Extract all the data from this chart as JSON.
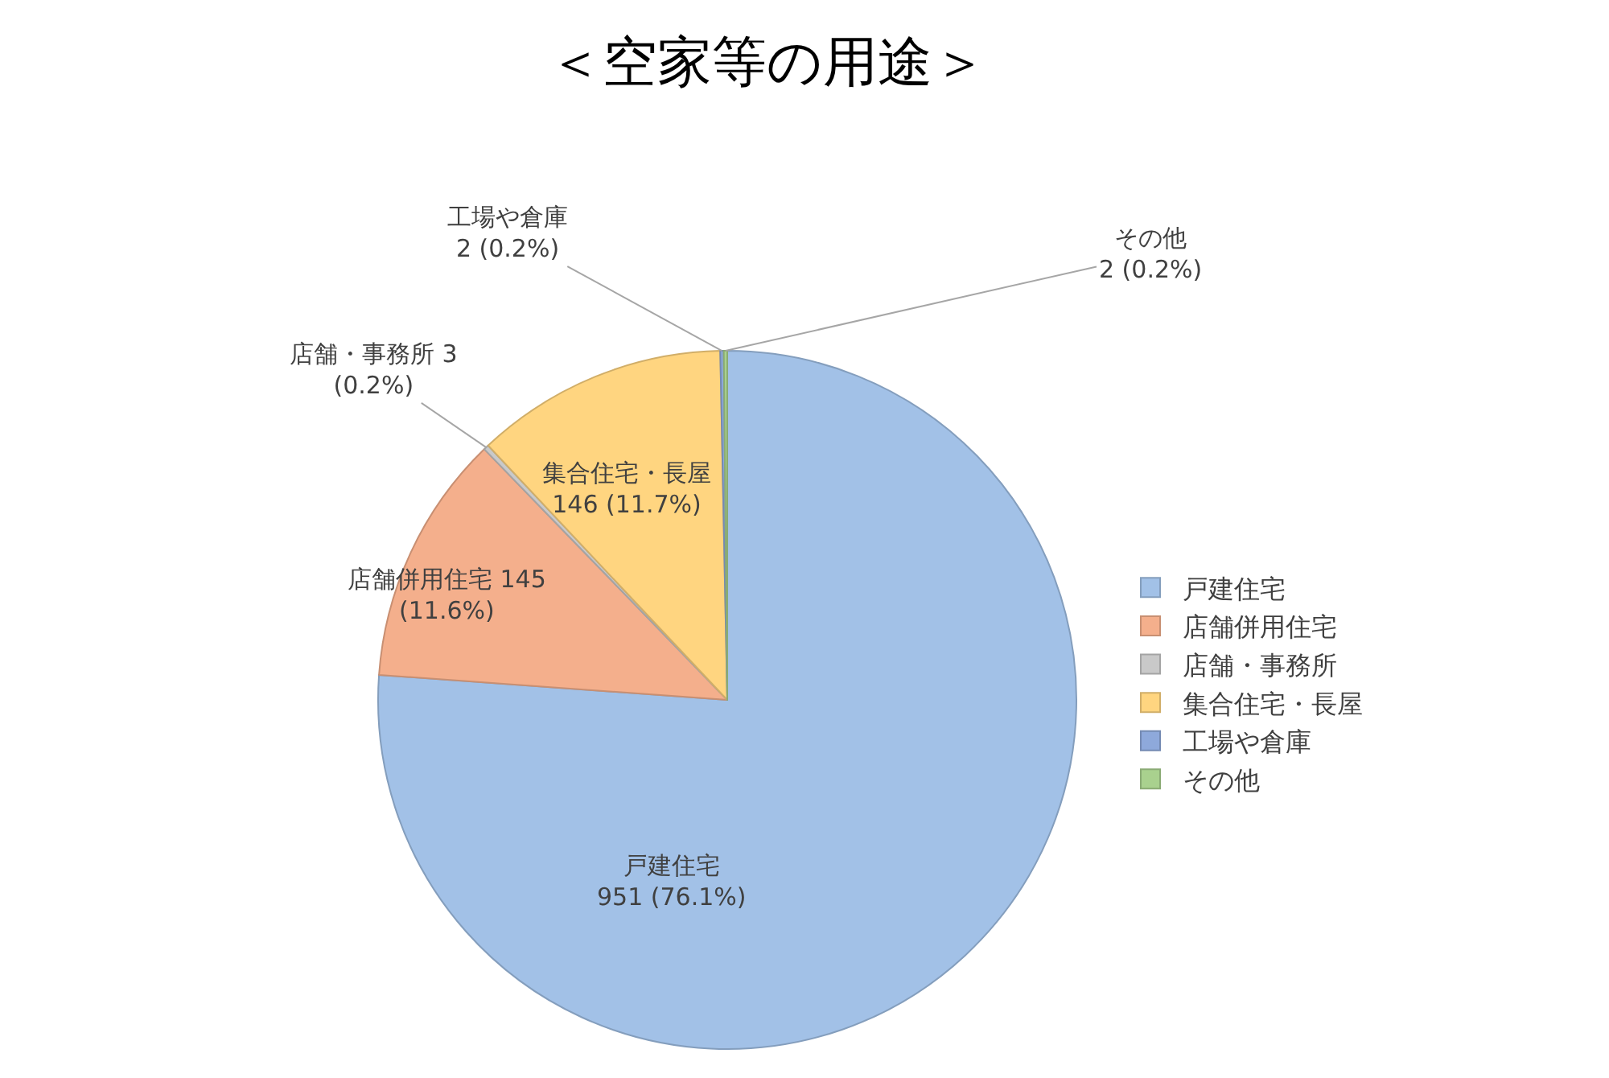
{
  "chart_data": {
    "type": "pie",
    "title": "＜空家等の用途＞",
    "categories": [
      "戸建住宅",
      "店舗併用住宅",
      "店舗・事務所",
      "集合住宅・長屋",
      "工場や倉庫",
      "その他"
    ],
    "values": [
      951,
      145,
      3,
      146,
      2,
      2
    ],
    "value_labels": [
      "951 (76.1%)",
      "145 (11.6%)",
      "3 (0.2%)",
      "146 (11.7%)",
      "2 (0.2%)",
      "2 (0.2%)"
    ],
    "colors": [
      "#a2c1e7",
      "#f4af8c",
      "#c9c9c9",
      "#ffd580",
      "#8ea9db",
      "#a9d18e"
    ],
    "legend": "right"
  }
}
